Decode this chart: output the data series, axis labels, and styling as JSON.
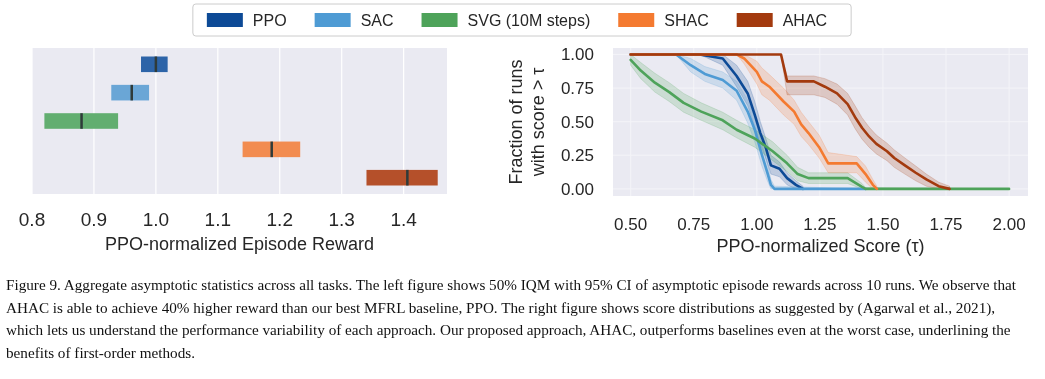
{
  "chart_data": [
    {
      "type": "box",
      "orientation": "horizontal",
      "categories": [
        null,
        null,
        null,
        null,
        null
      ],
      "xlabel": "PPO-normalized Episode Reward",
      "xlim": [
        0.8,
        1.47
      ],
      "xticks": [
        0.8,
        0.9,
        {
          "value": 1,
          "label": "1.0"
        },
        1.1,
        1.2,
        1.3,
        1.4
      ],
      "grid": "x",
      "tick_labels": "x",
      "colors": [
        "#2d64a8",
        "#6aa6d6",
        "#62ae70",
        "#f28c50",
        "#b5502a"
      ],
      "boxes": [
        {
          "low": 0.976,
          "q1": 0.976,
          "median": 1.0,
          "q3": 1.019,
          "high": 1.019
        },
        {
          "low": 0.928,
          "q1": 0.928,
          "median": 0.961,
          "q3": 0.989,
          "high": 0.989
        },
        {
          "low": 0.82,
          "q1": 0.82,
          "median": 0.88,
          "q3": 0.939,
          "high": 0.939
        },
        {
          "low": 1.14,
          "q1": 1.14,
          "median": 1.187,
          "q3": 1.233,
          "high": 1.233
        },
        {
          "low": 1.34,
          "q1": 1.34,
          "median": 1.406,
          "q3": 1.455,
          "high": 1.455
        }
      ]
    },
    {
      "type": "line",
      "xlabel": "PPO-normalized Score (τ)",
      "ylabel": "Fraction of runs\nwith score > τ",
      "xlim": [
        0.43,
        2.075
      ],
      "ylim": [
        -0.053,
        1.048
      ],
      "xticks": [
        {
          "value": 0.5,
          "label": "0.50"
        },
        {
          "value": 0.75,
          "label": "0.75"
        },
        {
          "value": 1,
          "label": "1.00"
        },
        {
          "value": 1.25,
          "label": "1.25"
        },
        {
          "value": 1.5,
          "label": "1.50"
        },
        {
          "value": 1.75,
          "label": "1.75"
        },
        {
          "value": 2,
          "label": "2.00"
        }
      ],
      "yticks": [
        {
          "value": 0,
          "label": "0.00"
        },
        {
          "value": 0.25,
          "label": "0.25"
        },
        {
          "value": 0.5,
          "label": "0.50"
        },
        {
          "value": 0.75,
          "label": "0.75"
        },
        {
          "value": 1,
          "label": "1.00"
        }
      ],
      "grid": true,
      "legend": "top",
      "line_style": "solid",
      "marker": "none",
      "series": [
        {
          "name": "PPO",
          "color": "#0d4a96",
          "x": [
            0.5,
            0.773,
            0.865,
            0.92,
            0.964,
            0.992,
            1.014,
            1.035,
            1.056,
            1.09,
            1.12,
            1.155,
            1.183
          ],
          "values": [
            1,
            1,
            0.97,
            0.84,
            0.71,
            0.55,
            0.415,
            0.31,
            0.175,
            0.15,
            0.08,
            0.03,
            0
          ],
          "upper": [
            1,
            1,
            1,
            0.92,
            0.8,
            0.65,
            0.5,
            0.38,
            0.25,
            0.2,
            0.12,
            0.06,
            0.02
          ],
          "lower": [
            1,
            1,
            0.92,
            0.76,
            0.62,
            0.46,
            0.33,
            0.23,
            0.11,
            0.09,
            0.03,
            0,
            0
          ]
        },
        {
          "name": "SAC",
          "color": "#4e9bd4",
          "x": [
            0.5,
            0.68,
            0.738,
            0.794,
            0.865,
            0.92,
            0.964,
            0.992,
            1.02,
            1.042,
            1.056,
            1.07,
            1.431
          ],
          "values": [
            1,
            1,
            0.92,
            0.855,
            0.81,
            0.73,
            0.575,
            0.44,
            0.255,
            0.12,
            0.03,
            0,
            0
          ],
          "upper": [
            1,
            1,
            0.97,
            0.91,
            0.87,
            0.8,
            0.66,
            0.53,
            0.34,
            0.19,
            0.07,
            0.02,
            0
          ],
          "lower": [
            1,
            1,
            0.87,
            0.8,
            0.75,
            0.66,
            0.49,
            0.35,
            0.17,
            0.06,
            0,
            0,
            0
          ]
        },
        {
          "name": "SVG (10M steps)",
          "color": "#4ea35a",
          "x": [
            0.5,
            0.54,
            0.596,
            0.653,
            0.71,
            0.78,
            0.865,
            0.92,
            0.992,
            1.063,
            1.12,
            1.162,
            1.205,
            1.36,
            1.417,
            1.431,
            2.0
          ],
          "values": [
            0.96,
            0.88,
            0.79,
            0.72,
            0.64,
            0.575,
            0.51,
            0.44,
            0.375,
            0.28,
            0.19,
            0.11,
            0.08,
            0.08,
            0.015,
            0,
            0
          ],
          "upper": [
            1,
            0.94,
            0.86,
            0.79,
            0.71,
            0.64,
            0.57,
            0.51,
            0.44,
            0.35,
            0.25,
            0.16,
            0.12,
            0.12,
            0.04,
            0.01,
            0
          ],
          "lower": [
            0.92,
            0.82,
            0.72,
            0.65,
            0.57,
            0.51,
            0.44,
            0.38,
            0.31,
            0.21,
            0.13,
            0.06,
            0.04,
            0.04,
            0,
            0,
            0
          ]
        },
        {
          "name": "SHAC",
          "color": "#f47a30",
          "x": [
            0.5,
            0.92,
            0.95,
            1.0,
            1.02,
            1.05,
            1.106,
            1.148,
            1.176,
            1.205,
            1.247,
            1.283,
            1.396,
            1.431,
            1.46,
            1.476
          ],
          "values": [
            1,
            1,
            0.97,
            0.87,
            0.8,
            0.76,
            0.65,
            0.575,
            0.48,
            0.415,
            0.31,
            0.19,
            0.19,
            0.11,
            0.03,
            0
          ],
          "upper": [
            1,
            1,
            1,
            0.95,
            0.9,
            0.85,
            0.75,
            0.66,
            0.57,
            0.5,
            0.4,
            0.27,
            0.24,
            0.17,
            0.07,
            0.02
          ],
          "lower": [
            1,
            1,
            0.93,
            0.78,
            0.7,
            0.66,
            0.55,
            0.48,
            0.39,
            0.33,
            0.23,
            0.12,
            0.12,
            0.05,
            0,
            0
          ]
        },
        {
          "name": "AHAC",
          "color": "#a33a0e",
          "x": [
            0.5,
            1.096,
            1.12,
            1.226,
            1.27,
            1.318,
            1.36,
            1.389,
            1.417,
            1.445,
            1.474,
            1.516,
            1.545,
            1.587,
            1.63,
            1.672,
            1.721,
            1.764
          ],
          "values": [
            1,
            1,
            0.8,
            0.8,
            0.76,
            0.71,
            0.63,
            0.535,
            0.455,
            0.39,
            0.335,
            0.28,
            0.23,
            0.175,
            0.12,
            0.07,
            0.02,
            0
          ],
          "upper": [
            1,
            1,
            0.84,
            0.84,
            0.82,
            0.78,
            0.71,
            0.62,
            0.53,
            0.46,
            0.4,
            0.34,
            0.29,
            0.23,
            0.17,
            0.11,
            0.05,
            0.02
          ],
          "lower": [
            1,
            1,
            0.7,
            0.7,
            0.68,
            0.63,
            0.55,
            0.45,
            0.37,
            0.31,
            0.26,
            0.21,
            0.16,
            0.11,
            0.06,
            0.02,
            0,
            0
          ]
        }
      ],
      "annotations": [
        "Figure 9. Aggregate asymptotic statistics across all tasks. The left figure shows 50% IQM with 95% CI of asymptotic episode rewards across 10 runs. We observe that AHAC is able to achieve 40% higher reward than our best MFRL baseline, PPO. The right figure shows score distributions as suggested by (Agarwal et al., 2021), which lets us understand the performance variability of each approach. Our proposed approach, AHAC, outperforms baselines even at the worst case, underlining the benefits of first-order methods."
      ]
    }
  ]
}
